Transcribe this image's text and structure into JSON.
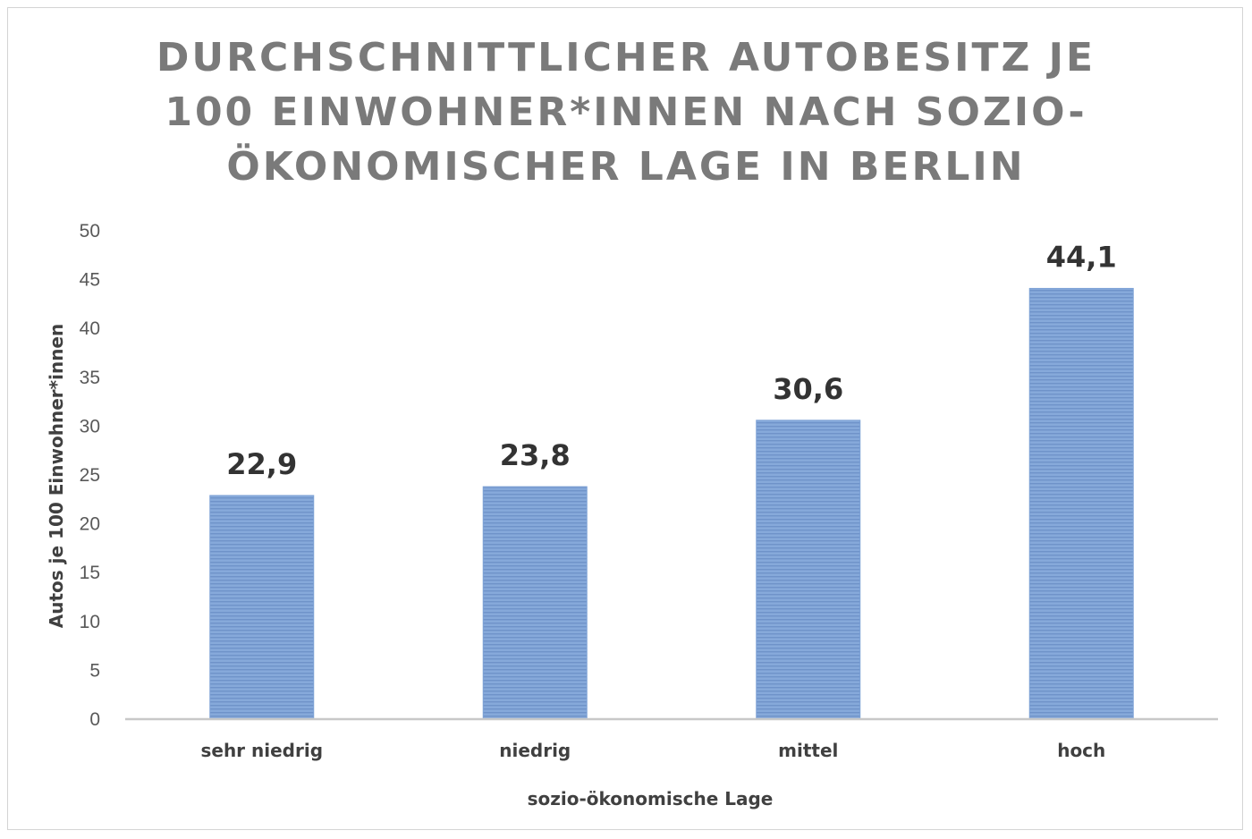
{
  "chart_data": {
    "type": "bar",
    "title": "DURCHSCHNITTLICHER AUTOBESITZ JE 100 EINWOHNER*INNEN NACH SOZIO-ÖKONOMISCHER LAGE IN BERLIN",
    "categories": [
      "sehr niedrig",
      "niedrig",
      "mittel",
      "hoch"
    ],
    "values": [
      22.9,
      23.8,
      30.6,
      44.1
    ],
    "data_labels": [
      "22,9",
      "23,8",
      "30,6",
      "44,1"
    ],
    "xlabel": "sozio-ökonomische Lage",
    "ylabel": "Autos je 100 Einwohner*innen",
    "ylim": [
      0,
      50
    ],
    "yticks": [
      0,
      5,
      10,
      15,
      20,
      25,
      30,
      35,
      40,
      45,
      50
    ],
    "grid": false,
    "legend": "none",
    "bar_color": "#7ea2d6",
    "bar_stripe_color": "#5f86c2"
  }
}
